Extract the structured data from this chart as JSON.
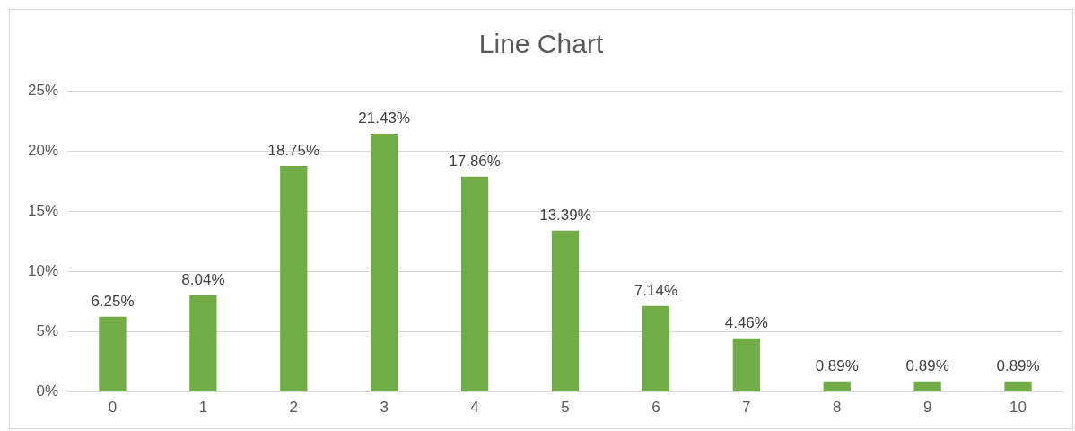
{
  "chart_data": {
    "type": "bar",
    "title": "Line Chart",
    "categories": [
      "0",
      "1",
      "2",
      "3",
      "4",
      "5",
      "6",
      "7",
      "8",
      "9",
      "10"
    ],
    "values": [
      6.25,
      8.04,
      18.75,
      21.43,
      17.86,
      13.39,
      7.14,
      4.46,
      0.89,
      0.89,
      0.89
    ],
    "value_labels": [
      "6.25%",
      "8.04%",
      "18.75%",
      "21.43%",
      "17.86%",
      "13.39%",
      "7.14%",
      "4.46%",
      "0.89%",
      "0.89%",
      "0.89%"
    ],
    "color": "#70ad47",
    "ylim": [
      0,
      25
    ],
    "yticks": [
      {
        "value": 0,
        "label": "0%"
      },
      {
        "value": 5,
        "label": "5%"
      },
      {
        "value": 10,
        "label": "10%"
      },
      {
        "value": 15,
        "label": "15%"
      },
      {
        "value": 20,
        "label": "20%"
      },
      {
        "value": 25,
        "label": "25%"
      }
    ],
    "grid": "y",
    "legend": false
  }
}
